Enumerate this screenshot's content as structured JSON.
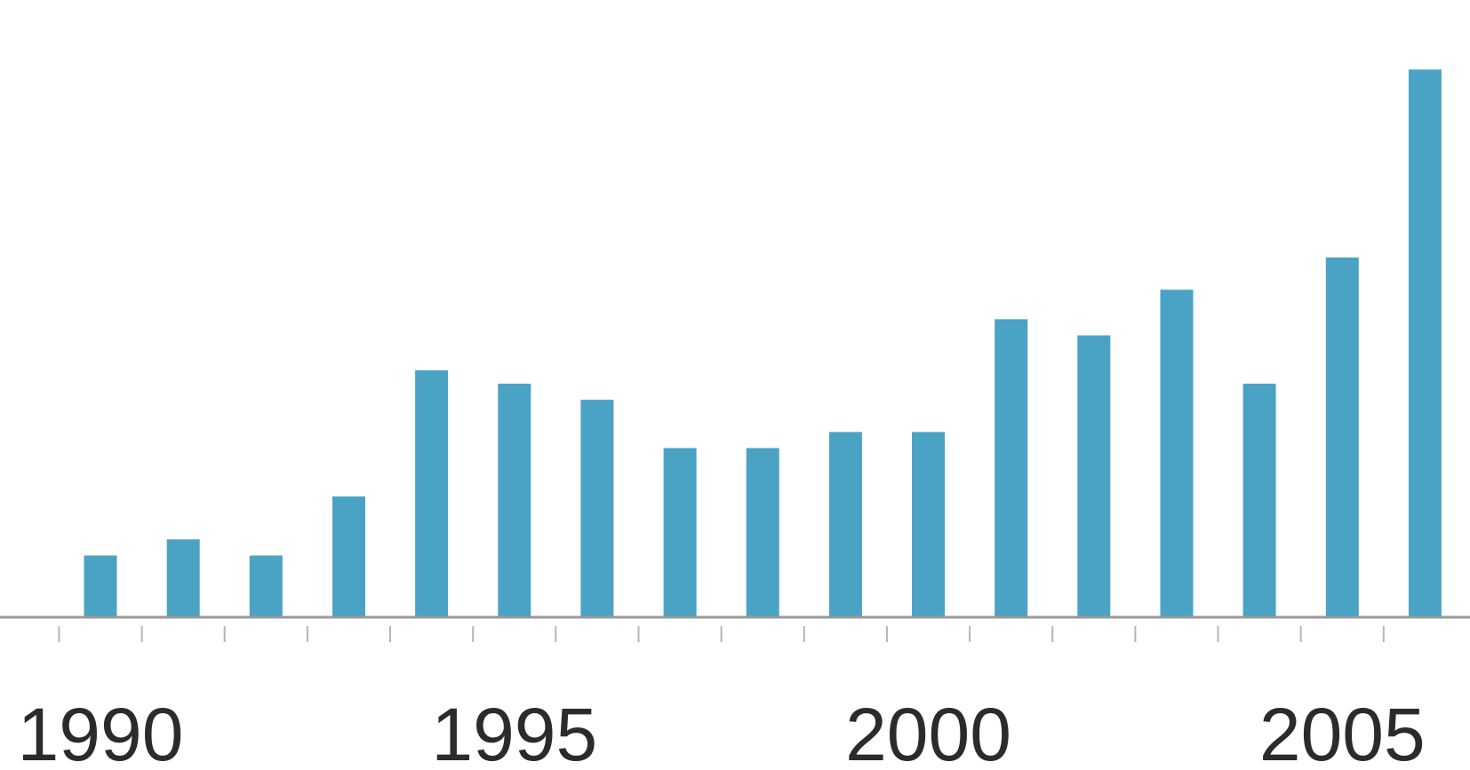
{
  "chart_data": {
    "type": "bar",
    "categories": [
      "1990",
      "1991",
      "1992",
      "1993",
      "1994",
      "1995",
      "1996",
      "1997",
      "1998",
      "1999",
      "2000",
      "2001",
      "2002",
      "2003",
      "2004",
      "2005",
      "2006"
    ],
    "values": [
      11.5,
      14.5,
      11.5,
      22.5,
      46,
      43.5,
      40.5,
      31.5,
      31.5,
      34.5,
      34.5,
      55.5,
      52.5,
      61,
      43.5,
      67,
      102
    ],
    "tick_labels": [
      "1990",
      "1995",
      "2000",
      "2005"
    ],
    "title": "",
    "xlabel": "",
    "ylabel": "",
    "ylim": [
      0,
      108
    ],
    "grid": false,
    "legend": "none",
    "colors": {
      "bar": "#4aa3c4",
      "axis": "#999999",
      "text": "#2b2b2b"
    }
  }
}
